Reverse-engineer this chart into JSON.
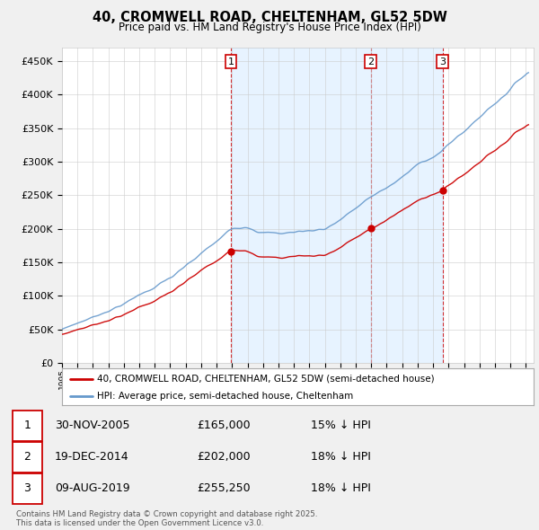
{
  "title": "40, CROMWELL ROAD, CHELTENHAM, GL52 5DW",
  "subtitle": "Price paid vs. HM Land Registry's House Price Index (HPI)",
  "red_label": "40, CROMWELL ROAD, CHELTENHAM, GL52 5DW (semi-detached house)",
  "blue_label": "HPI: Average price, semi-detached house, Cheltenham",
  "footnote": "Contains HM Land Registry data © Crown copyright and database right 2025.\nThis data is licensed under the Open Government Licence v3.0.",
  "sales": [
    {
      "num": 1,
      "date": "30-NOV-2005",
      "price": 165000,
      "hpi_pct": "15% ↓ HPI",
      "year": 2005.92
    },
    {
      "num": 2,
      "date": "19-DEC-2014",
      "price": 202000,
      "hpi_pct": "18% ↓ HPI",
      "year": 2014.97
    },
    {
      "num": 3,
      "date": "09-AUG-2019",
      "price": 255250,
      "hpi_pct": "18% ↓ HPI",
      "year": 2019.61
    }
  ],
  "ylim": [
    0,
    470000
  ],
  "xlim_start": 1995.0,
  "xlim_end": 2025.5,
  "bg_color": "#f0f0f0",
  "plot_bg": "#ffffff",
  "red_color": "#cc0000",
  "blue_color": "#6699cc",
  "shade_color": "#ddeeff",
  "grid_color": "#cccccc",
  "marker_box_color": "#cc0000",
  "dashed_line_color": "#cc0000"
}
